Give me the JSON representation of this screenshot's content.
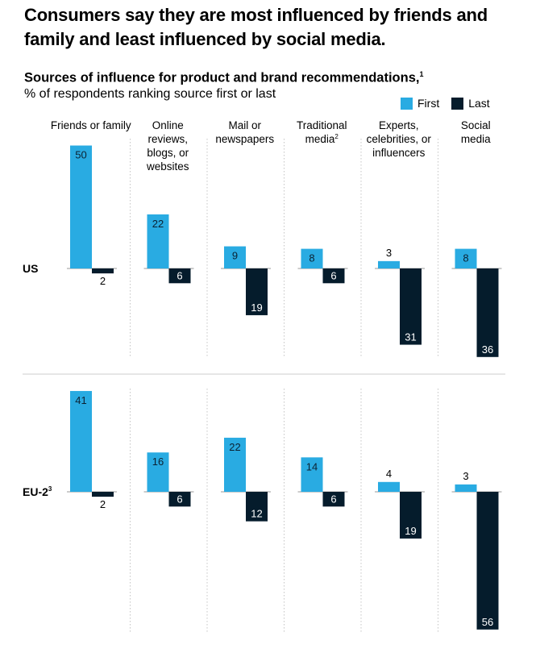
{
  "headline": "Consumers say they are most influenced by friends and family and least influenced by social media.",
  "colors": {
    "first": "#29ABE2",
    "last": "#051C2C",
    "axis": "#999999",
    "divider": "#cccccc"
  },
  "chart_data": {
    "type": "bar",
    "title": "Sources of influence for product and brand recommendations,",
    "title_footnote": "1",
    "subtitle": "% of respondents ranking source first or last",
    "legend": [
      "First",
      "Last"
    ],
    "legend_position": "top-right",
    "categories": [
      {
        "lines": [
          "Friends or family"
        ],
        "sup": ""
      },
      {
        "lines": [
          "Online",
          "reviews,",
          "blogs, or",
          "websites"
        ],
        "sup": ""
      },
      {
        "lines": [
          "Mail or",
          "newspapers"
        ],
        "sup": ""
      },
      {
        "lines": [
          "Traditional",
          "media"
        ],
        "sup": "2"
      },
      {
        "lines": [
          "Experts,",
          "celebrities, or",
          "influencers"
        ],
        "sup": ""
      },
      {
        "lines": [
          "Social",
          "media"
        ],
        "sup": ""
      }
    ],
    "panels": [
      {
        "region": "US",
        "region_sup": "",
        "series": [
          {
            "name": "First",
            "values": [
              50,
              22,
              9,
              8,
              3,
              8
            ]
          },
          {
            "name": "Last",
            "values": [
              2,
              6,
              19,
              6,
              31,
              36
            ]
          }
        ]
      },
      {
        "region": "EU-2",
        "region_sup": "3",
        "series": [
          {
            "name": "First",
            "values": [
              41,
              16,
              22,
              14,
              4,
              3
            ]
          },
          {
            "name": "Last",
            "values": [
              2,
              6,
              12,
              6,
              19,
              56
            ]
          }
        ]
      }
    ]
  }
}
